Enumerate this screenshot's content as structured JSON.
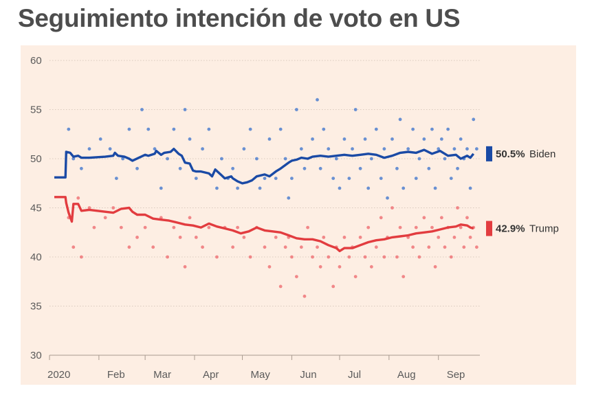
{
  "title": "Seguimiento intención de voto en US",
  "colors": {
    "background": "#fdeee3",
    "biden": "#1a4aa5",
    "trump": "#e23c3f",
    "biden_dot": "#4f7fcf",
    "trump_dot": "#ee7478",
    "grid": "#d9c9bd",
    "axis_text": "#5a5a5a"
  },
  "chart_data": {
    "type": "line",
    "title": "Seguimiento intención de voto en US",
    "xlabel": "",
    "ylabel": "",
    "ylim": [
      30,
      60
    ],
    "yticks": [
      30,
      35,
      40,
      45,
      50,
      55,
      60
    ],
    "xlim": [
      0,
      270
    ],
    "xticks": [
      {
        "label": "2020",
        "day": 0
      },
      {
        "label": "Feb",
        "day": 31
      },
      {
        "label": "Mar",
        "day": 60
      },
      {
        "label": "Apr",
        "day": 91
      },
      {
        "label": "May",
        "day": 121
      },
      {
        "label": "Jun",
        "day": 152
      },
      {
        "label": "Jul",
        "day": 182
      },
      {
        "label": "Aug",
        "day": 213
      },
      {
        "label": "Sep",
        "day": 244
      }
    ],
    "series": [
      {
        "name": "Biden",
        "label": "Biden",
        "value_label": "50.5%",
        "x": [
          3,
          10,
          10.5,
          13,
          15,
          18,
          20,
          25,
          35,
          40,
          41,
          43,
          47,
          50,
          52,
          60,
          62,
          66,
          67,
          70,
          72,
          76,
          78,
          81,
          83,
          85,
          88,
          90,
          92,
          95,
          100,
          102,
          104,
          108,
          110,
          114,
          115,
          118,
          121,
          124,
          127,
          130,
          135,
          138,
          142,
          145,
          150,
          152,
          155,
          158,
          162,
          165,
          170,
          175,
          180,
          185,
          190,
          195,
          200,
          205,
          210,
          215,
          220,
          225,
          230,
          235,
          240,
          245,
          250,
          255,
          258,
          262,
          264,
          266
        ],
        "y": [
          48.1,
          48.1,
          50.7,
          50.6,
          50.2,
          50.3,
          50.1,
          50.1,
          50.2,
          50.3,
          50.6,
          50.3,
          50.2,
          50.0,
          49.8,
          50.4,
          50.3,
          50.5,
          50.8,
          50.4,
          50.6,
          50.7,
          51.0,
          50.5,
          50.3,
          49.6,
          49.5,
          48.8,
          48.7,
          48.7,
          48.5,
          48.2,
          48.9,
          48.3,
          48.0,
          48.2,
          48.0,
          47.7,
          47.5,
          47.6,
          47.8,
          48.2,
          48.4,
          48.2,
          48.7,
          49.0,
          49.6,
          49.8,
          49.9,
          50.1,
          50.0,
          50.2,
          50.3,
          50.2,
          50.3,
          50.4,
          50.3,
          50.4,
          50.5,
          50.4,
          50.1,
          50.3,
          50.6,
          50.7,
          50.6,
          50.9,
          50.5,
          50.8,
          50.3,
          50.4,
          50.0,
          50.3,
          50.1,
          50.5
        ]
      },
      {
        "name": "Trump",
        "label": "Trump",
        "value_label": "42.9%",
        "x": [
          3,
          10,
          10.5,
          12,
          14,
          15,
          18,
          20,
          25,
          30,
          35,
          40,
          45,
          50,
          52,
          55,
          60,
          65,
          70,
          75,
          80,
          85,
          90,
          95,
          100,
          105,
          110,
          115,
          120,
          125,
          130,
          135,
          140,
          145,
          150,
          155,
          160,
          165,
          170,
          175,
          180,
          182,
          185,
          190,
          195,
          200,
          205,
          210,
          215,
          220,
          225,
          230,
          235,
          240,
          245,
          250,
          255,
          258,
          262,
          264,
          266
        ],
        "y": [
          46.1,
          46.1,
          45.5,
          44.5,
          43.6,
          45.4,
          45.4,
          44.7,
          44.8,
          44.7,
          44.6,
          44.5,
          44.9,
          45.0,
          44.6,
          44.3,
          44.3,
          43.9,
          43.8,
          43.7,
          43.5,
          43.3,
          43.2,
          43.0,
          43.4,
          43.1,
          42.9,
          42.7,
          42.4,
          42.6,
          43.0,
          42.7,
          42.6,
          42.5,
          42.2,
          41.9,
          41.8,
          41.8,
          41.6,
          41.2,
          40.9,
          40.6,
          40.9,
          40.9,
          41.2,
          41.5,
          41.7,
          41.8,
          42.0,
          42.1,
          42.2,
          42.4,
          42.5,
          42.6,
          42.8,
          43.0,
          43.1,
          43.3,
          43.2,
          43.0,
          42.9
        ]
      }
    ],
    "polls_biden": [
      [
        12,
        53
      ],
      [
        15,
        50
      ],
      [
        20,
        49
      ],
      [
        25,
        51
      ],
      [
        32,
        52
      ],
      [
        38,
        51
      ],
      [
        42,
        48
      ],
      [
        46,
        50
      ],
      [
        50,
        53
      ],
      [
        55,
        49
      ],
      [
        58,
        55
      ],
      [
        62,
        53
      ],
      [
        66,
        51
      ],
      [
        70,
        47
      ],
      [
        74,
        50
      ],
      [
        78,
        53
      ],
      [
        82,
        49
      ],
      [
        85,
        55
      ],
      [
        88,
        52
      ],
      [
        92,
        48
      ],
      [
        96,
        51
      ],
      [
        100,
        53
      ],
      [
        105,
        47
      ],
      [
        108,
        50
      ],
      [
        112,
        48
      ],
      [
        115,
        49
      ],
      [
        118,
        47
      ],
      [
        122,
        51
      ],
      [
        126,
        53
      ],
      [
        130,
        50
      ],
      [
        132,
        47
      ],
      [
        135,
        48
      ],
      [
        138,
        52
      ],
      [
        142,
        48
      ],
      [
        145,
        53
      ],
      [
        148,
        50
      ],
      [
        150,
        46
      ],
      [
        152,
        48
      ],
      [
        155,
        55
      ],
      [
        158,
        51
      ],
      [
        160,
        49
      ],
      [
        165,
        52
      ],
      [
        168,
        56
      ],
      [
        170,
        49
      ],
      [
        172,
        53
      ],
      [
        175,
        51
      ],
      [
        178,
        48
      ],
      [
        180,
        50
      ],
      [
        182,
        47
      ],
      [
        185,
        52
      ],
      [
        188,
        48
      ],
      [
        190,
        51
      ],
      [
        192,
        55
      ],
      [
        195,
        49
      ],
      [
        198,
        52
      ],
      [
        200,
        47
      ],
      [
        202,
        50
      ],
      [
        205,
        53
      ],
      [
        208,
        48
      ],
      [
        210,
        51
      ],
      [
        212,
        46
      ],
      [
        215,
        52
      ],
      [
        218,
        49
      ],
      [
        220,
        54
      ],
      [
        222,
        47
      ],
      [
        225,
        51
      ],
      [
        228,
        53
      ],
      [
        230,
        48
      ],
      [
        232,
        50
      ],
      [
        235,
        52
      ],
      [
        238,
        49
      ],
      [
        240,
        53
      ],
      [
        242,
        47
      ],
      [
        244,
        51
      ],
      [
        246,
        52
      ],
      [
        248,
        50
      ],
      [
        250,
        53
      ],
      [
        252,
        48
      ],
      [
        254,
        51
      ],
      [
        256,
        49
      ],
      [
        258,
        52
      ],
      [
        260,
        50
      ],
      [
        262,
        51
      ],
      [
        264,
        47
      ],
      [
        266,
        54
      ],
      [
        268,
        51
      ]
    ],
    "polls_trump": [
      [
        12,
        44
      ],
      [
        15,
        41
      ],
      [
        18,
        46
      ],
      [
        20,
        40
      ],
      [
        25,
        45
      ],
      [
        28,
        43
      ],
      [
        35,
        44
      ],
      [
        40,
        45
      ],
      [
        45,
        43
      ],
      [
        50,
        41
      ],
      [
        55,
        42
      ],
      [
        60,
        43
      ],
      [
        65,
        41
      ],
      [
        70,
        44
      ],
      [
        74,
        40
      ],
      [
        78,
        43
      ],
      [
        82,
        42
      ],
      [
        85,
        39
      ],
      [
        88,
        44
      ],
      [
        92,
        42
      ],
      [
        96,
        41
      ],
      [
        100,
        43
      ],
      [
        105,
        40
      ],
      [
        110,
        43
      ],
      [
        115,
        41
      ],
      [
        118,
        43
      ],
      [
        122,
        42
      ],
      [
        126,
        40
      ],
      [
        130,
        43
      ],
      [
        135,
        41
      ],
      [
        138,
        39
      ],
      [
        142,
        42
      ],
      [
        145,
        37
      ],
      [
        148,
        41
      ],
      [
        150,
        42
      ],
      [
        152,
        40
      ],
      [
        155,
        38
      ],
      [
        158,
        41
      ],
      [
        160,
        36
      ],
      [
        162,
        43
      ],
      [
        165,
        40
      ],
      [
        168,
        41
      ],
      [
        170,
        39
      ],
      [
        172,
        42
      ],
      [
        175,
        40
      ],
      [
        178,
        37
      ],
      [
        180,
        41
      ],
      [
        182,
        39
      ],
      [
        185,
        42
      ],
      [
        188,
        40
      ],
      [
        190,
        41
      ],
      [
        192,
        38
      ],
      [
        195,
        42
      ],
      [
        198,
        40
      ],
      [
        200,
        43
      ],
      [
        202,
        39
      ],
      [
        205,
        41
      ],
      [
        208,
        44
      ],
      [
        210,
        40
      ],
      [
        212,
        42
      ],
      [
        215,
        45
      ],
      [
        218,
        40
      ],
      [
        220,
        43
      ],
      [
        222,
        38
      ],
      [
        225,
        42
      ],
      [
        228,
        41
      ],
      [
        230,
        43
      ],
      [
        232,
        40
      ],
      [
        235,
        44
      ],
      [
        238,
        41
      ],
      [
        240,
        43
      ],
      [
        242,
        39
      ],
      [
        244,
        42
      ],
      [
        246,
        44
      ],
      [
        248,
        41
      ],
      [
        250,
        43
      ],
      [
        252,
        40
      ],
      [
        254,
        42
      ],
      [
        256,
        45
      ],
      [
        258,
        43
      ],
      [
        260,
        41
      ],
      [
        262,
        44
      ],
      [
        264,
        42
      ],
      [
        266,
        43
      ],
      [
        268,
        41
      ]
    ]
  }
}
